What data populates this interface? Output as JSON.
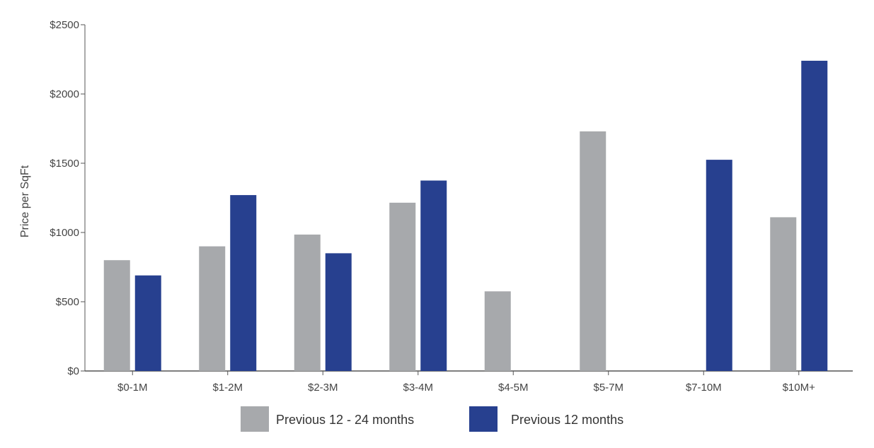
{
  "chart_data": {
    "type": "bar",
    "title": "",
    "xlabel": "",
    "ylabel": "Price per SqFt",
    "ylim": [
      0,
      2500
    ],
    "yticks": [
      0,
      500,
      1000,
      1500,
      2000,
      2500
    ],
    "ytick_labels": [
      "$0",
      "$500",
      "$1000",
      "$1500",
      "$2000",
      "$2500"
    ],
    "categories": [
      "$0-1M",
      "$1-2M",
      "$2-3M",
      "$3-4M",
      "$4-5M",
      "$5-7M",
      "$7-10M",
      "$10M+"
    ],
    "series": [
      {
        "name": "Previous 12 - 24 months",
        "color": "#a7a9ac",
        "values": [
          800,
          900,
          985,
          1215,
          575,
          1730,
          null,
          1110
        ]
      },
      {
        "name": "Previous 12 months",
        "color": "#27408f",
        "values": [
          690,
          1270,
          850,
          1375,
          null,
          null,
          1525,
          2240
        ]
      }
    ],
    "grid": false,
    "legend_position": "bottom-center"
  }
}
